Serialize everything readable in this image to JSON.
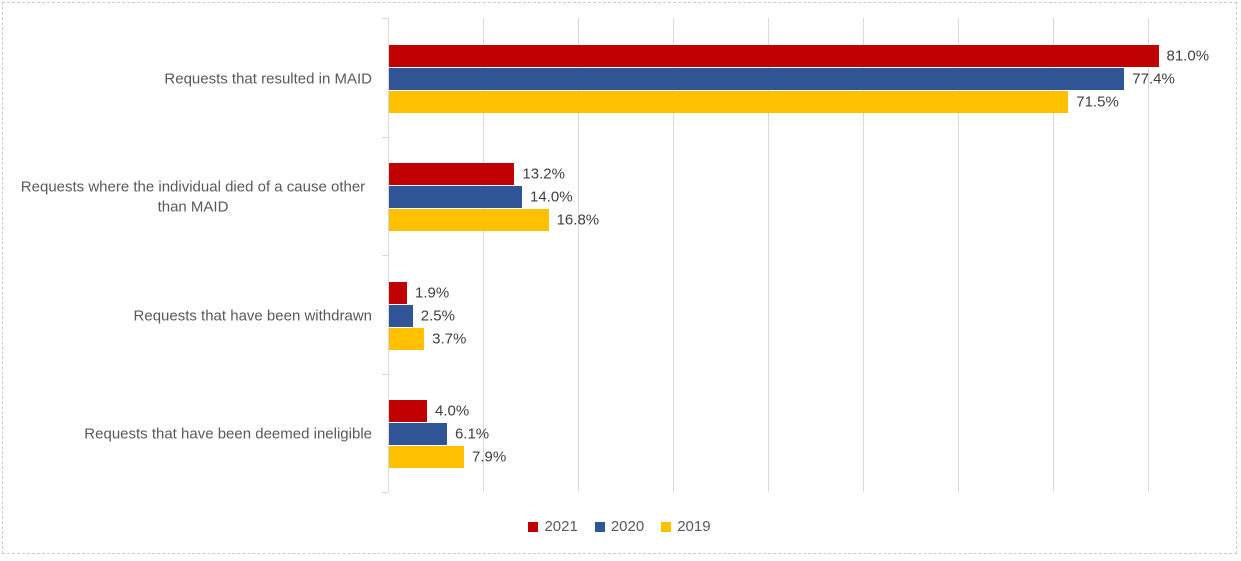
{
  "chart_data": {
    "type": "bar",
    "orientation": "horizontal",
    "title": "",
    "xlabel": "",
    "ylabel": "",
    "categories": [
      "Requests that resulted in MAID",
      "Requests where the individual died of a cause other than MAID",
      "Requests that have been withdrawn",
      "Requests that have been deemed ineligible"
    ],
    "series": [
      {
        "name": "2021",
        "color": "#C00000",
        "values": [
          81.0,
          13.2,
          1.9,
          4.0
        ],
        "labels": [
          "81.0%",
          "13.2%",
          "1.9%",
          "4.0%"
        ]
      },
      {
        "name": "2020",
        "color": "#2F5597",
        "values": [
          77.4,
          14.0,
          2.5,
          6.1
        ],
        "labels": [
          "77.4%",
          "14.0%",
          "2.5%",
          "6.1%"
        ]
      },
      {
        "name": "2019",
        "color": "#FFC000",
        "values": [
          71.5,
          16.8,
          3.7,
          7.9
        ],
        "labels": [
          "71.5%",
          "16.8%",
          "3.7%",
          "7.9%"
        ]
      }
    ],
    "xlim": [
      0,
      90
    ],
    "gridline_step": 10,
    "grid": true,
    "data_labels": "outside-end",
    "legend_position": "bottom",
    "gridline_color": "#D9D9D9",
    "border_color": "#CCCCCC",
    "category_text_color": "#595959",
    "data_label_color": "#404040"
  }
}
